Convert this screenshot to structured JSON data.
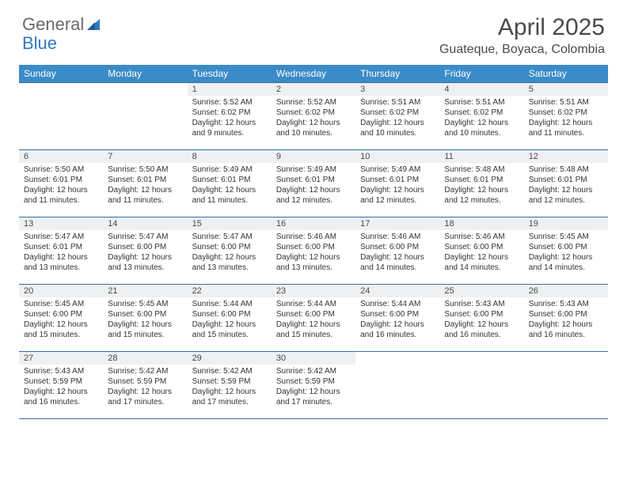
{
  "logo": {
    "part1": "General",
    "part2": "Blue"
  },
  "title": {
    "month": "April 2025",
    "location": "Guateque, Boyaca, Colombia"
  },
  "colors": {
    "header_bg": "#3b8bc8",
    "header_fg": "#ffffff",
    "daynum_bg": "#eef0f2",
    "border": "#2f6fa8",
    "text": "#333333",
    "logo_gray": "#6a6a6a",
    "logo_blue": "#2f7bbf"
  },
  "day_headers": [
    "Sunday",
    "Monday",
    "Tuesday",
    "Wednesday",
    "Thursday",
    "Friday",
    "Saturday"
  ],
  "weeks": [
    [
      {
        "n": "",
        "sunrise": "",
        "sunset": "",
        "daylight": ""
      },
      {
        "n": "",
        "sunrise": "",
        "sunset": "",
        "daylight": ""
      },
      {
        "n": "1",
        "sunrise": "Sunrise: 5:52 AM",
        "sunset": "Sunset: 6:02 PM",
        "daylight": "Daylight: 12 hours and 9 minutes."
      },
      {
        "n": "2",
        "sunrise": "Sunrise: 5:52 AM",
        "sunset": "Sunset: 6:02 PM",
        "daylight": "Daylight: 12 hours and 10 minutes."
      },
      {
        "n": "3",
        "sunrise": "Sunrise: 5:51 AM",
        "sunset": "Sunset: 6:02 PM",
        "daylight": "Daylight: 12 hours and 10 minutes."
      },
      {
        "n": "4",
        "sunrise": "Sunrise: 5:51 AM",
        "sunset": "Sunset: 6:02 PM",
        "daylight": "Daylight: 12 hours and 10 minutes."
      },
      {
        "n": "5",
        "sunrise": "Sunrise: 5:51 AM",
        "sunset": "Sunset: 6:02 PM",
        "daylight": "Daylight: 12 hours and 11 minutes."
      }
    ],
    [
      {
        "n": "6",
        "sunrise": "Sunrise: 5:50 AM",
        "sunset": "Sunset: 6:01 PM",
        "daylight": "Daylight: 12 hours and 11 minutes."
      },
      {
        "n": "7",
        "sunrise": "Sunrise: 5:50 AM",
        "sunset": "Sunset: 6:01 PM",
        "daylight": "Daylight: 12 hours and 11 minutes."
      },
      {
        "n": "8",
        "sunrise": "Sunrise: 5:49 AM",
        "sunset": "Sunset: 6:01 PM",
        "daylight": "Daylight: 12 hours and 11 minutes."
      },
      {
        "n": "9",
        "sunrise": "Sunrise: 5:49 AM",
        "sunset": "Sunset: 6:01 PM",
        "daylight": "Daylight: 12 hours and 12 minutes."
      },
      {
        "n": "10",
        "sunrise": "Sunrise: 5:49 AM",
        "sunset": "Sunset: 6:01 PM",
        "daylight": "Daylight: 12 hours and 12 minutes."
      },
      {
        "n": "11",
        "sunrise": "Sunrise: 5:48 AM",
        "sunset": "Sunset: 6:01 PM",
        "daylight": "Daylight: 12 hours and 12 minutes."
      },
      {
        "n": "12",
        "sunrise": "Sunrise: 5:48 AM",
        "sunset": "Sunset: 6:01 PM",
        "daylight": "Daylight: 12 hours and 12 minutes."
      }
    ],
    [
      {
        "n": "13",
        "sunrise": "Sunrise: 5:47 AM",
        "sunset": "Sunset: 6:01 PM",
        "daylight": "Daylight: 12 hours and 13 minutes."
      },
      {
        "n": "14",
        "sunrise": "Sunrise: 5:47 AM",
        "sunset": "Sunset: 6:00 PM",
        "daylight": "Daylight: 12 hours and 13 minutes."
      },
      {
        "n": "15",
        "sunrise": "Sunrise: 5:47 AM",
        "sunset": "Sunset: 6:00 PM",
        "daylight": "Daylight: 12 hours and 13 minutes."
      },
      {
        "n": "16",
        "sunrise": "Sunrise: 5:46 AM",
        "sunset": "Sunset: 6:00 PM",
        "daylight": "Daylight: 12 hours and 13 minutes."
      },
      {
        "n": "17",
        "sunrise": "Sunrise: 5:46 AM",
        "sunset": "Sunset: 6:00 PM",
        "daylight": "Daylight: 12 hours and 14 minutes."
      },
      {
        "n": "18",
        "sunrise": "Sunrise: 5:46 AM",
        "sunset": "Sunset: 6:00 PM",
        "daylight": "Daylight: 12 hours and 14 minutes."
      },
      {
        "n": "19",
        "sunrise": "Sunrise: 5:45 AM",
        "sunset": "Sunset: 6:00 PM",
        "daylight": "Daylight: 12 hours and 14 minutes."
      }
    ],
    [
      {
        "n": "20",
        "sunrise": "Sunrise: 5:45 AM",
        "sunset": "Sunset: 6:00 PM",
        "daylight": "Daylight: 12 hours and 15 minutes."
      },
      {
        "n": "21",
        "sunrise": "Sunrise: 5:45 AM",
        "sunset": "Sunset: 6:00 PM",
        "daylight": "Daylight: 12 hours and 15 minutes."
      },
      {
        "n": "22",
        "sunrise": "Sunrise: 5:44 AM",
        "sunset": "Sunset: 6:00 PM",
        "daylight": "Daylight: 12 hours and 15 minutes."
      },
      {
        "n": "23",
        "sunrise": "Sunrise: 5:44 AM",
        "sunset": "Sunset: 6:00 PM",
        "daylight": "Daylight: 12 hours and 15 minutes."
      },
      {
        "n": "24",
        "sunrise": "Sunrise: 5:44 AM",
        "sunset": "Sunset: 6:00 PM",
        "daylight": "Daylight: 12 hours and 16 minutes."
      },
      {
        "n": "25",
        "sunrise": "Sunrise: 5:43 AM",
        "sunset": "Sunset: 6:00 PM",
        "daylight": "Daylight: 12 hours and 16 minutes."
      },
      {
        "n": "26",
        "sunrise": "Sunrise: 5:43 AM",
        "sunset": "Sunset: 6:00 PM",
        "daylight": "Daylight: 12 hours and 16 minutes."
      }
    ],
    [
      {
        "n": "27",
        "sunrise": "Sunrise: 5:43 AM",
        "sunset": "Sunset: 5:59 PM",
        "daylight": "Daylight: 12 hours and 16 minutes."
      },
      {
        "n": "28",
        "sunrise": "Sunrise: 5:42 AM",
        "sunset": "Sunset: 5:59 PM",
        "daylight": "Daylight: 12 hours and 17 minutes."
      },
      {
        "n": "29",
        "sunrise": "Sunrise: 5:42 AM",
        "sunset": "Sunset: 5:59 PM",
        "daylight": "Daylight: 12 hours and 17 minutes."
      },
      {
        "n": "30",
        "sunrise": "Sunrise: 5:42 AM",
        "sunset": "Sunset: 5:59 PM",
        "daylight": "Daylight: 12 hours and 17 minutes."
      },
      {
        "n": "",
        "sunrise": "",
        "sunset": "",
        "daylight": ""
      },
      {
        "n": "",
        "sunrise": "",
        "sunset": "",
        "daylight": ""
      },
      {
        "n": "",
        "sunrise": "",
        "sunset": "",
        "daylight": ""
      }
    ]
  ]
}
